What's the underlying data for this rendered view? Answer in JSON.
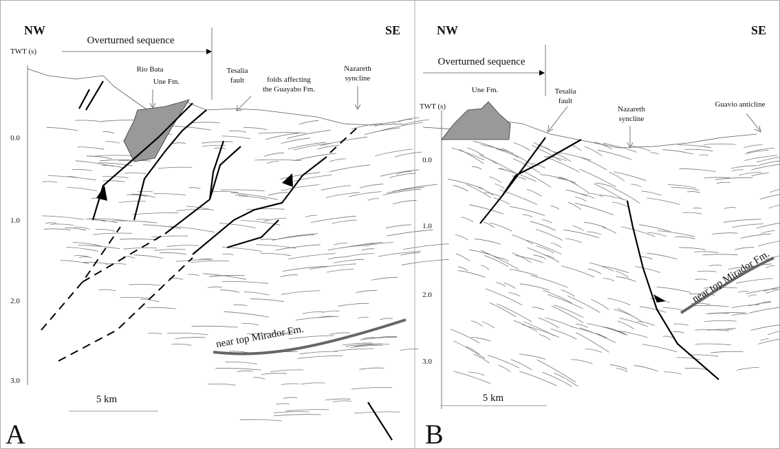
{
  "panels": [
    {
      "label": "A",
      "nw": "NW",
      "se": "SE",
      "overturned": "Overturned sequence",
      "twt": "TWT (s)",
      "rio_bata": "Rio Bata",
      "une": "Une Fm.",
      "tesalia": [
        "Tesalia",
        "fault"
      ],
      "folds": [
        "folds affecting",
        "the Guayabo Fm."
      ],
      "nazareth": [
        "Nazareth",
        "syncline"
      ],
      "axis_labels": [
        "0.0",
        "1.0",
        "2.0",
        "3.0"
      ],
      "horizon": "near top Mirador Fm.",
      "scale": "5 km"
    },
    {
      "label": "B",
      "nw": "NW",
      "se": "SE",
      "overturned": "Overturned sequence",
      "twt": "TWT (s)",
      "une": "Une Fm.",
      "tesalia": [
        "Tesalia",
        "fault"
      ],
      "nazareth": [
        "Nazareth",
        "syncline"
      ],
      "guavio": "Guavio anticline",
      "axis_labels": [
        "0.0",
        "1.0",
        "2.0",
        "3.0"
      ],
      "horizon": "near top Mirador Fm.",
      "scale": "5 km"
    }
  ]
}
